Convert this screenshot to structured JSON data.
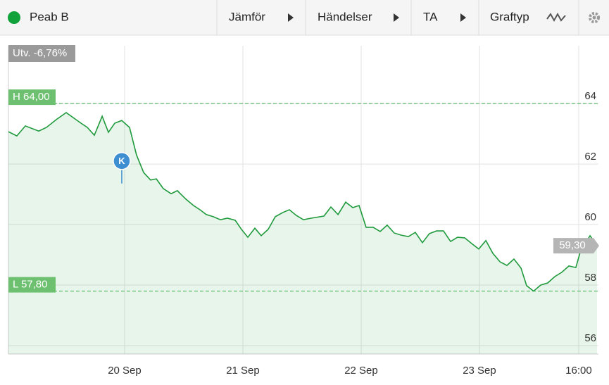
{
  "toolbar": {
    "instrument": "Peab B",
    "items": [
      "Jämför",
      "Händelser",
      "TA",
      "Graftyp"
    ]
  },
  "chart_data": {
    "type": "line",
    "x": [
      0.018,
      0.089,
      0.161,
      0.274,
      0.339,
      0.423,
      0.506,
      0.631,
      0.685,
      0.744,
      0.81,
      0.863,
      0.917,
      0.976,
      1.042,
      1.101,
      1.161,
      1.22,
      1.268,
      1.327,
      1.393,
      1.446,
      1.518,
      1.583,
      1.637,
      1.69,
      1.75,
      1.81,
      1.869,
      1.935,
      1.988,
      2.042,
      2.101,
      2.155,
      2.214,
      2.274,
      2.339,
      2.393,
      2.452,
      2.512,
      2.577,
      2.685,
      2.744,
      2.804,
      2.869,
      2.929,
      2.982,
      3.042,
      3.101,
      3.161,
      3.22,
      3.28,
      3.339,
      3.399,
      3.458,
      3.518,
      3.577,
      3.637,
      3.696,
      3.756,
      3.815,
      3.875,
      3.935,
      3.994,
      4.054,
      4.113,
      4.173,
      4.232,
      4.292,
      4.351,
      4.399,
      4.458,
      4.518,
      4.577,
      4.637,
      4.696,
      4.756,
      4.815,
      4.857,
      4.935,
      4.994
    ],
    "series": [
      {
        "name": "Peab B",
        "color": "#1f9a3c",
        "values": [
          63.07,
          62.93,
          63.26,
          63.09,
          63.21,
          63.47,
          63.7,
          63.35,
          63.21,
          62.95,
          63.58,
          63.05,
          63.35,
          63.44,
          63.21,
          62.3,
          61.72,
          61.47,
          61.51,
          61.19,
          61.02,
          61.12,
          60.84,
          60.63,
          60.49,
          60.33,
          60.26,
          60.16,
          60.21,
          60.14,
          59.84,
          59.58,
          59.88,
          59.63,
          59.84,
          60.26,
          60.4,
          60.49,
          60.3,
          60.16,
          60.21,
          60.28,
          60.58,
          60.33,
          60.74,
          60.56,
          60.63,
          59.91,
          59.91,
          59.77,
          59.98,
          59.72,
          59.65,
          59.6,
          59.74,
          59.4,
          59.7,
          59.79,
          59.79,
          59.44,
          59.58,
          59.56,
          59.37,
          59.19,
          59.47,
          59.05,
          58.77,
          58.65,
          58.86,
          58.56,
          57.98,
          57.8,
          58.0,
          58.07,
          58.28,
          58.42,
          58.63,
          58.58,
          59.16,
          59.63,
          59.3
        ]
      }
    ],
    "xlim": [
      0.018,
      5.006
    ],
    "xticks": [
      {
        "value": 1,
        "label": "20 Sep"
      },
      {
        "value": 2,
        "label": "21 Sep"
      },
      {
        "value": 3,
        "label": "22 Sep"
      },
      {
        "value": 4,
        "label": "23 Sep"
      },
      {
        "value": 4.839,
        "label": "16:00"
      }
    ],
    "ylim": [
      55.72,
      65.91
    ],
    "yticks": [
      56,
      58,
      60,
      62,
      64
    ],
    "grid": true,
    "change": "Utv. -6,76%",
    "high": {
      "value": 64,
      "label": "H 64,00"
    },
    "low": {
      "value": 57.8,
      "label": "L 57,80"
    },
    "last": {
      "value": 59.3,
      "label": "59,30"
    },
    "event": {
      "x": 0.976,
      "y": 62.1,
      "label": "K"
    }
  }
}
